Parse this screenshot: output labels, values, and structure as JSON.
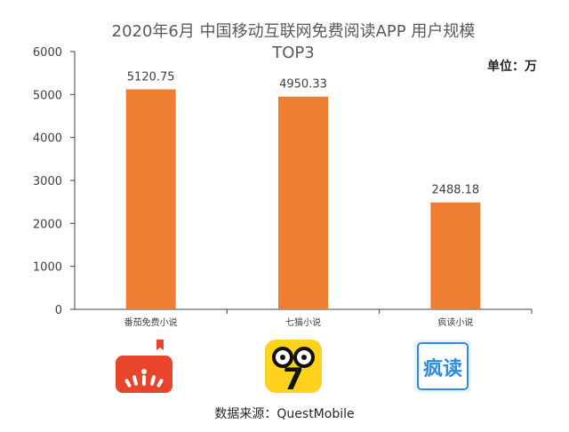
{
  "chart_data": {
    "type": "bar",
    "title": "2020年6月 中国移动互联网免费阅读APP  用户规模",
    "subtitle": "TOP3",
    "unit_label": "单位：万",
    "categories": [
      "番茄免费小说",
      "七猫小说",
      "疯读小说"
    ],
    "values": [
      5120.75,
      4950.33,
      2488.18
    ],
    "value_labels": [
      "5120.75",
      "4950.33",
      "2488.18"
    ],
    "yticks": [
      "0",
      "1000",
      "2000",
      "3000",
      "4000",
      "5000",
      "6000"
    ],
    "ylim": [
      0,
      6000
    ],
    "grid": false,
    "bar_color": "#ED7D31"
  },
  "logos": {
    "fanqie_color": "#E8452C",
    "qimao_color": "#FFD21E",
    "fengdu_color": "#2E8BE0",
    "fengdu_text": "疯读",
    "qimao_text": "7"
  },
  "source": "数据来源：QuestMobile"
}
